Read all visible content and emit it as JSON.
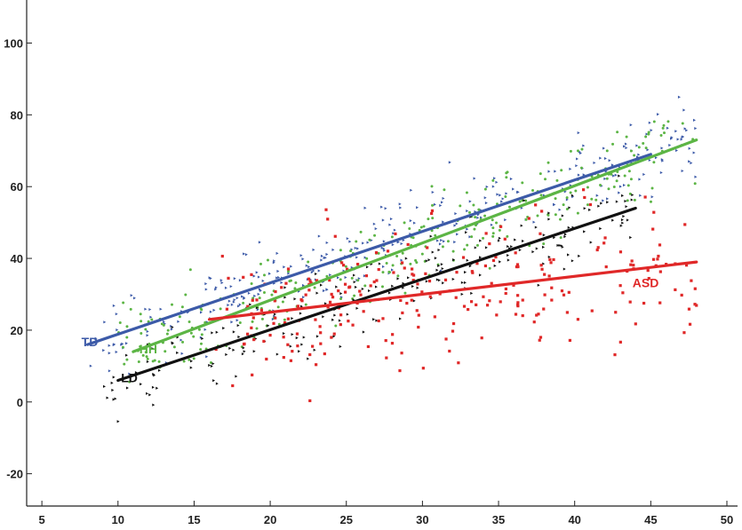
{
  "chart_data": {
    "type": "scatter",
    "title": "",
    "xlabel": "",
    "ylabel": "",
    "xlim": [
      4,
      50
    ],
    "ylim": [
      -29,
      112
    ],
    "x_ticks": [
      5,
      10,
      15,
      20,
      25,
      30,
      35,
      40,
      45,
      50
    ],
    "y_ticks": [
      -20,
      0,
      20,
      40,
      60,
      80,
      100
    ],
    "grid": false,
    "legend": "none",
    "series": [
      {
        "name": "TD",
        "color": "#3c5aa8",
        "marker": "triangle",
        "trend": [
          [
            8,
            16
          ],
          [
            45,
            69
          ]
        ],
        "label": {
          "text": "TD",
          "x": 7.6,
          "y": 15.5
        },
        "points_seed": 11,
        "points_count": 330,
        "x_range": [
          8,
          48
        ],
        "noise": 11
      },
      {
        "name": "HH",
        "color": "#5cb545",
        "marker": "dot",
        "trend": [
          [
            11,
            14
          ],
          [
            48,
            73
          ]
        ],
        "label": {
          "text": "HH",
          "x": 11.4,
          "y": 13.5
        },
        "points_seed": 23,
        "points_count": 300,
        "x_range": [
          10,
          48
        ],
        "noise": 12
      },
      {
        "name": "LD",
        "color": "#111111",
        "marker": "triangle",
        "trend": [
          [
            10,
            6
          ],
          [
            44,
            54
          ]
        ],
        "label": {
          "text": "LD",
          "x": 10.2,
          "y": 5.5
        },
        "points_seed": 37,
        "points_count": 220,
        "x_range": [
          9,
          44
        ],
        "noise": 10
      },
      {
        "name": "ASD",
        "color": "#e02828",
        "marker": "square",
        "trend": [
          [
            16,
            23
          ],
          [
            48,
            39
          ]
        ],
        "label": {
          "text": "ASD",
          "x": 43.8,
          "y": 32
        },
        "points_seed": 53,
        "points_count": 250,
        "x_range": [
          16,
          48
        ],
        "noise": 20
      }
    ]
  }
}
